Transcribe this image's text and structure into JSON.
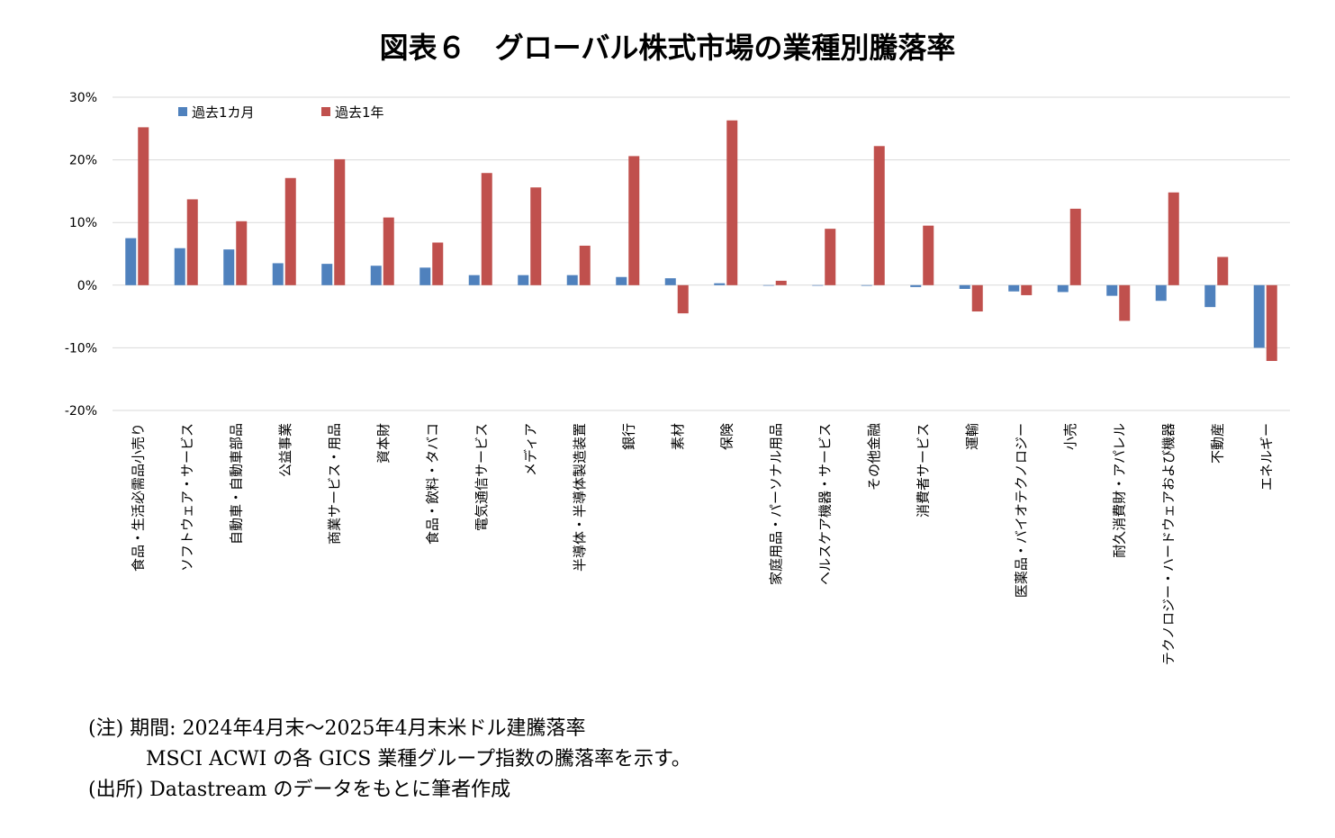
{
  "title": "図表６　グローバル株式市場の業種別騰落率",
  "chart_data": {
    "type": "bar",
    "categories": [
      "食品・生活必需品小売り",
      "ソフトウェア・サービス",
      "自動車・自動車部品",
      "公益事業",
      "商業サービス・用品",
      "資本財",
      "食品・飲料・タバコ",
      "電気通信サービス",
      "メディア",
      "半導体・半導体製造装置",
      "銀行",
      "素材",
      "保険",
      "家庭用品・パーソナル用品",
      "ヘルスケア機器・サービス",
      "その他金融",
      "消費者サービス",
      "運輸",
      "医薬品・バイオテクノロジー",
      "小売",
      "耐久消費財・アパレル",
      "テクノロジー・ハードウェアおよび機器",
      "不動産",
      "エネルギー"
    ],
    "series": [
      {
        "name": "過去1カ月",
        "color": "#4f81bd",
        "values": [
          7.5,
          5.9,
          5.7,
          3.5,
          3.4,
          3.1,
          2.8,
          1.6,
          1.6,
          1.6,
          1.3,
          1.1,
          0.3,
          0.0,
          0.0,
          -0.1,
          -0.3,
          -0.6,
          -1.0,
          -1.1,
          -1.7,
          -2.5,
          -3.5,
          -10.0
        ]
      },
      {
        "name": "過去1年",
        "color": "#c0504d",
        "values": [
          25.2,
          13.7,
          10.2,
          17.1,
          20.1,
          10.8,
          6.8,
          17.9,
          15.6,
          6.3,
          20.6,
          -4.5,
          26.3,
          0.7,
          9.0,
          22.2,
          9.5,
          -4.2,
          -1.6,
          12.2,
          -5.7,
          14.8,
          4.5,
          -12.1
        ]
      }
    ],
    "y_ticks": [
      "30%",
      "20%",
      "10%",
      "0%",
      "-10%",
      "-20%"
    ],
    "ylim": [
      -20,
      30
    ],
    "grid": true,
    "legend_position": "top-left"
  },
  "notes": {
    "line1": "(注) 期間: 2024年4月末～2025年4月末米ドル建騰落率",
    "line2": "MSCI ACWI の各 GICS 業種グループ指数の騰落率を示す。",
    "line3": "(出所) Datastream のデータをもとに筆者作成"
  }
}
